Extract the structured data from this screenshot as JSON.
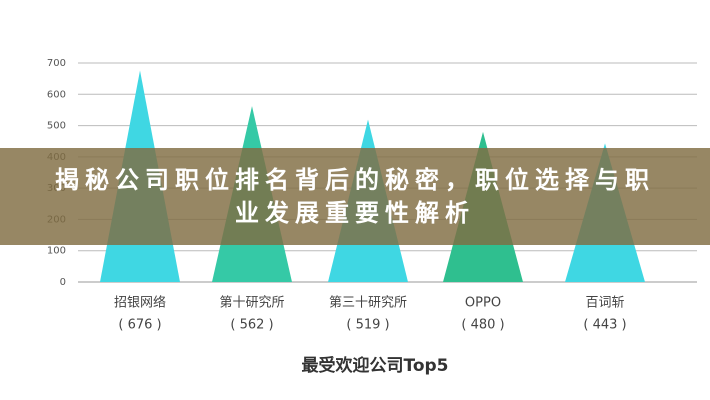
{
  "chart_data": {
    "type": "triangle",
    "title": "最受欢迎公司Top5",
    "categories": [
      "招银网络",
      "第十研究所",
      "第三十研究所",
      "OPPO",
      "百词斩"
    ],
    "values": [
      676,
      562,
      519,
      480,
      443
    ],
    "value_labels": [
      "( 676 )",
      "( 562 )",
      "( 519 )",
      "( 480 )",
      "( 443 )"
    ],
    "colors": [
      "#3fd7e3",
      "#35c9a6",
      "#3fd7e3",
      "#2fbf8f",
      "#3fd7e3"
    ],
    "ylim": [
      0,
      700
    ],
    "yticks": [
      0,
      100,
      200,
      300,
      400,
      500,
      600,
      700
    ],
    "grid": true
  },
  "banner": {
    "lines": [
      "揭秘公司职位排名背后的秘密，职位选择与职",
      "业发展重要性解析"
    ]
  }
}
